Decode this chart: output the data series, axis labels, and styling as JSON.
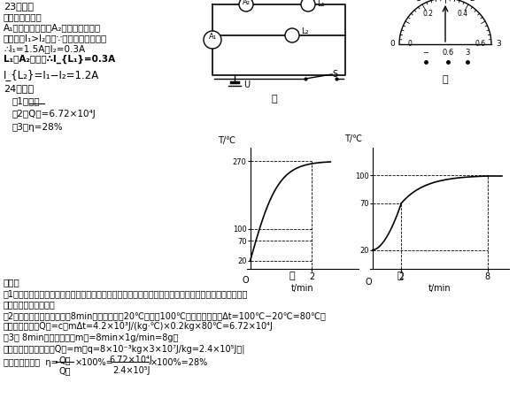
{
  "bg_color": "#ffffff",
  "s23_title": "23、解：",
  "s23_l1": "由电路图可知：",
  "s23_l2": "A₁测的是总电流，A₂测的是支路电流",
  "s23_l3": "因此示数I₁>I₂，又∵表盘指针位置相同",
  "s23_l4": "∴I₁=1.5A，I₂=0.3A",
  "s23_l5": "L₁与A₂串联，∴I_{L₁}=0.3A",
  "s23_l6": "I_{L₂}=I₁−I₂=1.2A",
  "s24_title": "24、解：",
  "s24_1": "（1）甲；",
  "s24_2": "（2）Q吸=6.72×10⁴J",
  "s24_3": "（3）η=28%",
  "jiexi": "解析：",
  "jx1": "（1）图甲表示的是沙子吸热升温的过程，因为沙子和水的质量相等，吸收相同热量时，沙子的比热容比水",
  "jx2": "小，沙子温度升得多。",
  "jx3": "（2）从图象可以知道，加热8min，水的温度从20℃上升到100℃后温度不变，则Δt=100℃−20℃=80℃，",
  "jx4": "水吸收的热量：Q吸=c水mΔt=4.2×10³J/(kg·℃)×0.2kg×80℃=6.72×10⁴J",
  "jx5": "（3） 8min消耗的酒精：m酒=8min×1g/min=8g，",
  "jx6": "完全燃烧放出的热量：Q燃=m酒q=8×10⁻³kg×3×10⁷J/kg=2.4×10⁵J，|",
  "jx7a": "热量的利用率：  η=",
  "jx7b": "Q吸",
  "jx7c": "Q燃",
  "jx7d": "×100%=",
  "jx7e": "6.72×10⁴J",
  "jx7f": "2.4×10⁵J",
  "jx7g": "×100%=28%",
  "label_jia": "甲",
  "label_yi": "乙"
}
